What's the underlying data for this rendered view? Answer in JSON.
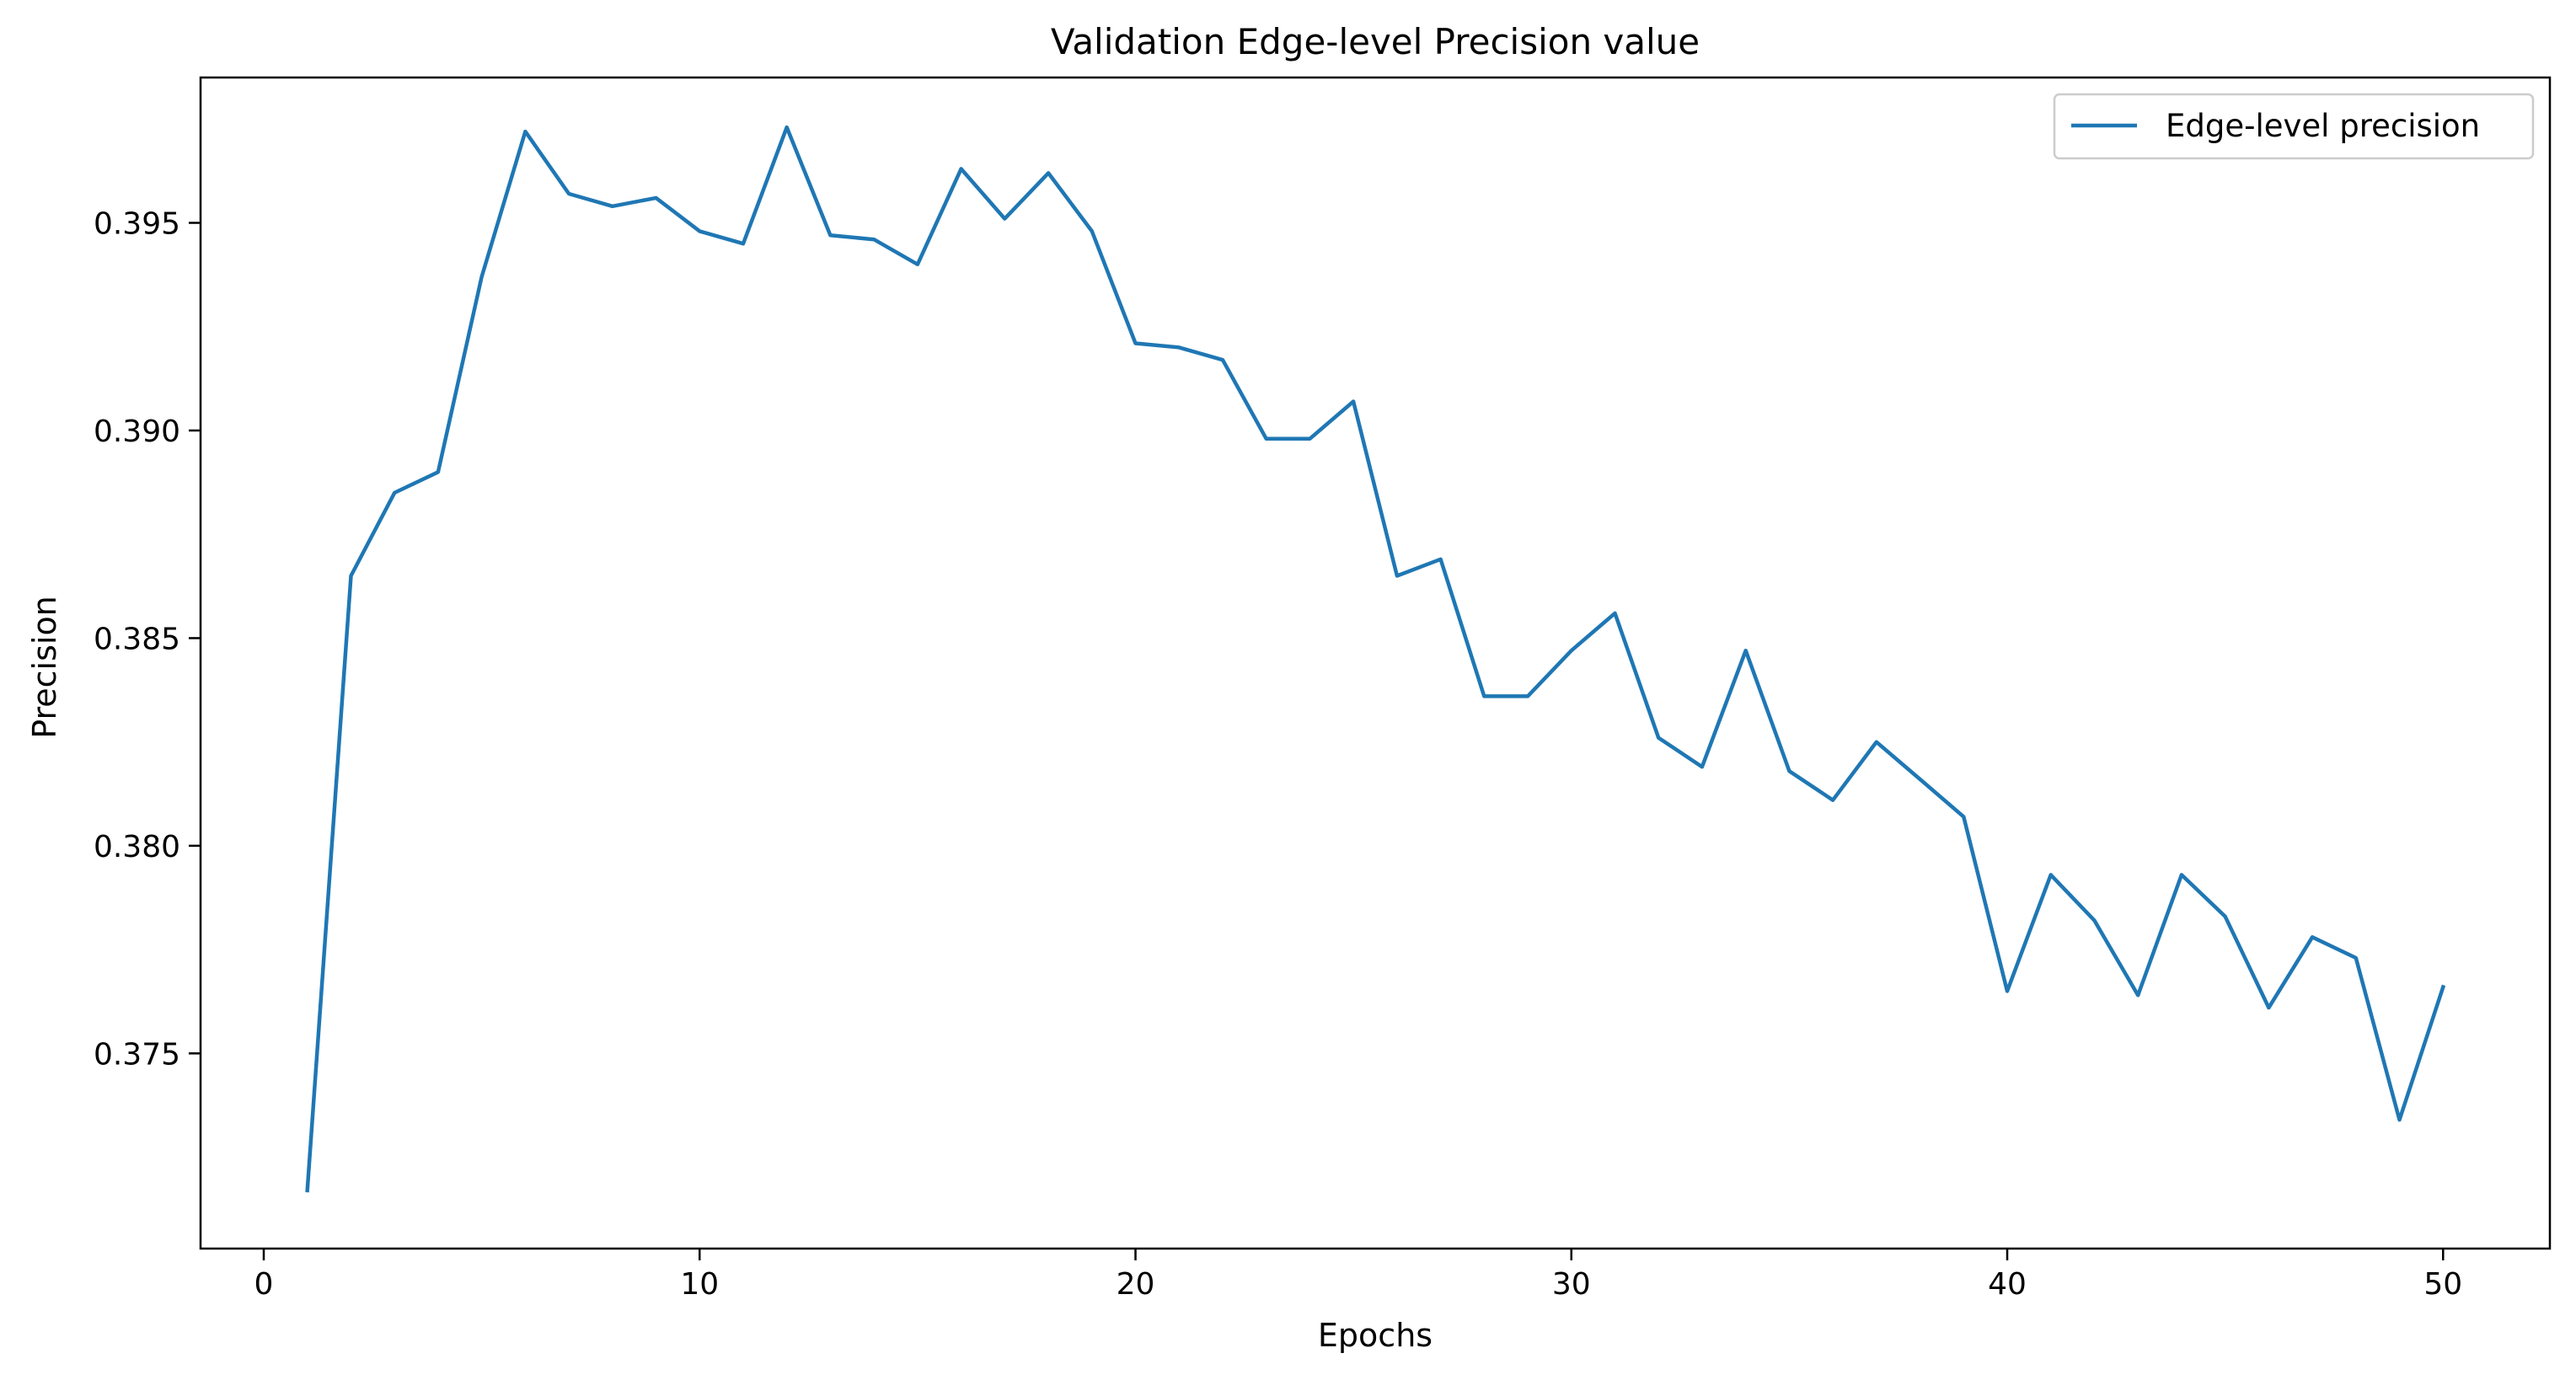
{
  "chart_data": {
    "type": "line",
    "title": "Validation Edge-level Precision value",
    "xlabel": "Epochs",
    "ylabel": "Precision",
    "xlim": [
      -1.45,
      52.45
    ],
    "ylim": [
      0.3703,
      0.3985
    ],
    "xticks": [
      0,
      10,
      20,
      30,
      40,
      50
    ],
    "xtick_labels": [
      "0",
      "10",
      "20",
      "30",
      "40",
      "50"
    ],
    "yticks": [
      0.375,
      0.38,
      0.385,
      0.39,
      0.395
    ],
    "ytick_labels": [
      "0.375",
      "0.380",
      "0.385",
      "0.390",
      "0.395"
    ],
    "grid": false,
    "legend_position": "top-right",
    "series": [
      {
        "name": "Edge-level precision",
        "color": "#1f77b4",
        "x": [
          1,
          2,
          3,
          4,
          5,
          6,
          7,
          8,
          9,
          10,
          11,
          12,
          13,
          14,
          15,
          16,
          17,
          18,
          19,
          20,
          21,
          22,
          23,
          24,
          25,
          26,
          27,
          28,
          29,
          30,
          31,
          32,
          33,
          34,
          35,
          36,
          37,
          38,
          39,
          40,
          41,
          42,
          43,
          44,
          45,
          46,
          47,
          48,
          49,
          50
        ],
        "y": [
          0.3717,
          0.3865,
          0.3885,
          0.389,
          0.3937,
          0.3972,
          0.3957,
          0.3954,
          0.3956,
          0.3948,
          0.3945,
          0.3973,
          0.3947,
          0.3946,
          0.394,
          0.3963,
          0.3951,
          0.3962,
          0.3948,
          0.3921,
          0.392,
          0.3917,
          0.3898,
          0.3898,
          0.3907,
          0.3865,
          0.3869,
          0.3836,
          0.3836,
          0.3847,
          0.3856,
          0.3826,
          0.3819,
          0.3847,
          0.3818,
          0.3811,
          0.3825,
          0.3816,
          0.3807,
          0.3765,
          0.3793,
          0.3782,
          0.3764,
          0.3793,
          0.3783,
          0.3761,
          0.3778,
          0.3773,
          0.3734,
          0.3766
        ]
      }
    ]
  }
}
